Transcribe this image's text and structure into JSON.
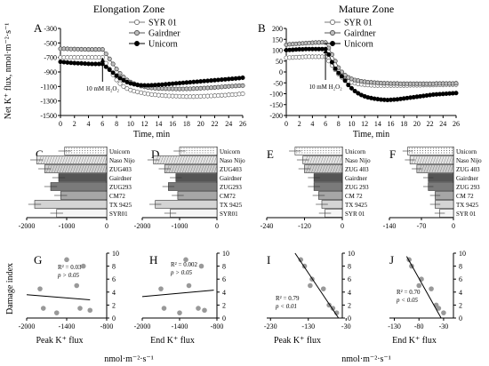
{
  "titles": {
    "left": "Elongation Zone",
    "right": "Mature Zone"
  },
  "labels": {
    "net_flux_ylabel": "Net K⁺ flux, nmol·m⁻²·s⁻¹",
    "time_xlabel": "Time, min",
    "treatment": "10 mM H₂O₂",
    "damage_ylabel": "Damage index",
    "flux_units": "nmol·m⁻²·s⁻¹",
    "peak_xlabel": "Peak K⁺ flux",
    "end_xlabel": "End K⁺ flux"
  },
  "legend": [
    "SYR 01",
    "Gairdner",
    "Unicorn"
  ],
  "varieties": [
    "Unicorn",
    "Naso Nijo",
    "ZUG403",
    "Gairdner",
    "ZUG293",
    "CM72",
    "TX 9425",
    "SYR01"
  ],
  "varieties_mature": [
    "Unicorn",
    "Naso Nijo",
    "ZUG 403",
    "Gairdner",
    "ZUG 293",
    "CM 72",
    "TX 9425",
    "SYR 01"
  ],
  "chart_data": [
    {
      "panel": "A",
      "type": "line",
      "xlabel": "Time, min",
      "ylabel": "Net K⁺ flux, nmol·m⁻²·s⁻¹",
      "xlim": [
        0,
        26
      ],
      "ylim": [
        -1500,
        -300
      ],
      "xticks": [
        0,
        2,
        4,
        6,
        8,
        10,
        12,
        14,
        16,
        18,
        20,
        22,
        24,
        26
      ],
      "yticks": [
        -300,
        -500,
        -700,
        -900,
        -1100,
        -1300,
        -1500
      ],
      "series": [
        {
          "name": "SYR 01",
          "x": [
            0,
            0.5,
            1,
            1.5,
            2,
            2.5,
            3,
            3.5,
            4,
            4.5,
            5,
            5.5,
            6,
            6.5,
            7,
            7.5,
            8,
            8.5,
            9,
            9.5,
            10,
            10.5,
            11,
            11.5,
            12,
            12.5,
            13,
            13.5,
            14,
            14.5,
            15,
            15.5,
            16,
            16.5,
            17,
            17.5,
            18,
            18.5,
            19,
            19.5,
            20,
            20.5,
            21,
            21.5,
            22,
            22.5,
            23,
            23.5,
            24,
            24.5,
            25,
            25.5,
            26
          ],
          "y": [
            -700,
            -700,
            -700,
            -700,
            -700,
            -700,
            -700,
            -700,
            -700,
            -700,
            -700,
            -700,
            -700,
            -780,
            -860,
            -940,
            -1010,
            -1060,
            -1100,
            -1130,
            -1150,
            -1165,
            -1175,
            -1185,
            -1195,
            -1205,
            -1210,
            -1215,
            -1220,
            -1225,
            -1228,
            -1230,
            -1232,
            -1234,
            -1236,
            -1238,
            -1240,
            -1240,
            -1240,
            -1238,
            -1236,
            -1234,
            -1232,
            -1230,
            -1228,
            -1225,
            -1222,
            -1220,
            -1215,
            -1212,
            -1210,
            -1205,
            -1200
          ]
        },
        {
          "name": "Gairdner",
          "x": [
            0,
            0.5,
            1,
            1.5,
            2,
            2.5,
            3,
            3.5,
            4,
            4.5,
            5,
            5.5,
            6,
            6.5,
            7,
            7.5,
            8,
            8.5,
            9,
            9.5,
            10,
            10.5,
            11,
            11.5,
            12,
            12.5,
            13,
            13.5,
            14,
            14.5,
            15,
            15.5,
            16,
            16.5,
            17,
            17.5,
            18,
            18.5,
            19,
            19.5,
            20,
            20.5,
            21,
            21.5,
            22,
            22.5,
            23,
            23.5,
            24,
            24.5,
            25,
            25.5,
            26
          ],
          "y": [
            -580,
            -580,
            -582,
            -584,
            -585,
            -586,
            -588,
            -589,
            -590,
            -590,
            -590,
            -590,
            -590,
            -650,
            -720,
            -790,
            -860,
            -920,
            -970,
            -1010,
            -1040,
            -1060,
            -1080,
            -1095,
            -1105,
            -1115,
            -1120,
            -1125,
            -1128,
            -1130,
            -1131,
            -1132,
            -1133,
            -1134,
            -1134,
            -1134,
            -1133,
            -1132,
            -1130,
            -1128,
            -1125,
            -1122,
            -1120,
            -1117,
            -1114,
            -1110,
            -1106,
            -1102,
            -1099,
            -1096,
            -1093,
            -1090,
            -1088
          ]
        },
        {
          "name": "Unicorn",
          "x": [
            0,
            0.5,
            1,
            1.5,
            2,
            2.5,
            3,
            3.5,
            4,
            4.5,
            5,
            5.5,
            6,
            6.5,
            7,
            7.5,
            8,
            8.5,
            9,
            9.5,
            10,
            10.5,
            11,
            11.5,
            12,
            12.5,
            13,
            13.5,
            14,
            14.5,
            15,
            15.5,
            16,
            16.5,
            17,
            17.5,
            18,
            18.5,
            19,
            19.5,
            20,
            20.5,
            21,
            21.5,
            22,
            22.5,
            23,
            23.5,
            24,
            24.5,
            25,
            25.5,
            26
          ],
          "y": [
            -760,
            -765,
            -770,
            -775,
            -778,
            -780,
            -782,
            -785,
            -788,
            -790,
            -790,
            -790,
            -790,
            -830,
            -870,
            -910,
            -950,
            -985,
            -1015,
            -1040,
            -1058,
            -1070,
            -1078,
            -1083,
            -1085,
            -1085,
            -1083,
            -1080,
            -1077,
            -1074,
            -1070,
            -1066,
            -1062,
            -1058,
            -1054,
            -1050,
            -1046,
            -1042,
            -1038,
            -1034,
            -1030,
            -1026,
            -1022,
            -1018,
            -1014,
            -1010,
            -1006,
            -1002,
            -998,
            -994,
            -990,
            -986,
            -980
          ]
        }
      ]
    },
    {
      "panel": "B",
      "type": "line",
      "xlabel": "Time, min",
      "xlim": [
        0,
        26
      ],
      "ylim": [
        -200,
        200
      ],
      "xticks": [
        0,
        2,
        4,
        6,
        8,
        10,
        12,
        14,
        16,
        18,
        20,
        22,
        24,
        26
      ],
      "yticks": [
        200,
        150,
        100,
        50,
        0,
        -50,
        -100,
        -150,
        -200
      ],
      "series": [
        {
          "name": "SYR 01",
          "x": [
            0,
            0.5,
            1,
            1.5,
            2,
            2.5,
            3,
            3.5,
            4,
            4.5,
            5,
            5.5,
            6,
            6.5,
            7,
            7.5,
            8,
            8.5,
            9,
            9.5,
            10,
            10.5,
            11,
            11.5,
            12,
            12.5,
            13,
            13.5,
            14,
            14.5,
            15,
            15.5,
            16,
            16.5,
            17,
            17.5,
            18,
            18.5,
            19,
            19.5,
            20,
            20.5,
            21,
            21.5,
            22,
            22.5,
            23,
            23.5,
            24,
            24.5,
            25,
            25.5,
            26
          ],
          "y": [
            65,
            66,
            67,
            68,
            68,
            69,
            70,
            70,
            70,
            70,
            70,
            70,
            70,
            50,
            30,
            10,
            -10,
            -25,
            -35,
            -43,
            -48,
            -52,
            -55,
            -57,
            -59,
            -60,
            -61,
            -62,
            -62,
            -62,
            -62,
            -62,
            -62,
            -62,
            -62,
            -62,
            -62,
            -62,
            -61,
            -61,
            -61,
            -61,
            -60,
            -60,
            -60,
            -60,
            -59,
            -59,
            -59,
            -58,
            -58,
            -58,
            -58
          ]
        },
        {
          "name": "Gairdner",
          "x": [
            0,
            0.5,
            1,
            1.5,
            2,
            2.5,
            3,
            3.5,
            4,
            4.5,
            5,
            5.5,
            6,
            6.5,
            7,
            7.5,
            8,
            8.5,
            9,
            9.5,
            10,
            10.5,
            11,
            11.5,
            12,
            12.5,
            13,
            13.5,
            14,
            14.5,
            15,
            15.5,
            16,
            16.5,
            17,
            17.5,
            18,
            18.5,
            19,
            19.5,
            20,
            20.5,
            21,
            21.5,
            22,
            22.5,
            23,
            23.5,
            24,
            24.5,
            25,
            25.5,
            26
          ],
          "y": [
            125,
            127,
            128,
            129,
            130,
            131,
            132,
            133,
            134,
            135,
            135,
            136,
            135,
            110,
            80,
            50,
            20,
            0,
            -15,
            -25,
            -32,
            -37,
            -40,
            -43,
            -45,
            -47,
            -48,
            -49,
            -50,
            -51,
            -52,
            -52,
            -53,
            -53,
            -53,
            -54,
            -54,
            -54,
            -54,
            -54,
            -54,
            -54,
            -54,
            -54,
            -54,
            -54,
            -53,
            -53,
            -53,
            -53,
            -53,
            -53,
            -52
          ]
        },
        {
          "name": "Unicorn",
          "x": [
            0,
            0.5,
            1,
            1.5,
            2,
            2.5,
            3,
            3.5,
            4,
            4.5,
            5,
            5.5,
            6,
            6.5,
            7,
            7.5,
            8,
            8.5,
            9,
            9.5,
            10,
            10.5,
            11,
            11.5,
            12,
            12.5,
            13,
            13.5,
            14,
            14.5,
            15,
            15.5,
            16,
            16.5,
            17,
            17.5,
            18,
            18.5,
            19,
            19.5,
            20,
            20.5,
            21,
            21.5,
            22,
            22.5,
            23,
            23.5,
            24,
            24.5,
            25,
            25.5,
            26
          ],
          "y": [
            100,
            101,
            102,
            103,
            104,
            104,
            105,
            105,
            105,
            105,
            105,
            105,
            105,
            80,
            45,
            15,
            -5,
            -20,
            -40,
            -60,
            -75,
            -88,
            -98,
            -106,
            -112,
            -117,
            -120,
            -123,
            -125,
            -127,
            -128,
            -129,
            -128,
            -127,
            -126,
            -124,
            -122,
            -120,
            -118,
            -116,
            -114,
            -112,
            -110,
            -108,
            -106,
            -104,
            -103,
            -102,
            -101,
            -100,
            -99,
            -98,
            -97
          ]
        }
      ]
    },
    {
      "panel": "C",
      "type": "bar",
      "orientation": "horizontal",
      "xlim": [
        -2000,
        0
      ],
      "xticks": [
        -2000,
        -1000,
        0
      ],
      "categories": [
        "Unicorn",
        "Naso Nijo",
        "ZUG403",
        "Gairdner",
        "ZUG293",
        "CM72",
        "TX 9425",
        "SYR01"
      ],
      "values": [
        -1050,
        -1750,
        -1550,
        -1200,
        -1400,
        -1150,
        -1800,
        -1250
      ]
    },
    {
      "panel": "D",
      "type": "bar",
      "orientation": "horizontal",
      "xlim": [
        -2000,
        0
      ],
      "xticks": [
        -2000,
        -1000,
        0
      ],
      "categories": [
        "Unicorn",
        "Naso Nijo",
        "ZUG403",
        "Gairdner",
        "ZUG293",
        "CM72",
        "TX 9425",
        "SYR01"
      ],
      "values": [
        -1000,
        -1700,
        -1400,
        -1100,
        -1300,
        -1050,
        -1650,
        -1250
      ]
    },
    {
      "panel": "E",
      "type": "bar",
      "orientation": "horizontal",
      "xlim": [
        -240,
        0
      ],
      "xticks": [
        -240,
        -120,
        0
      ],
      "categories": [
        "Unicorn",
        "Naso Nijo",
        "ZUG 403",
        "Gairdner",
        "ZUG 293",
        "CM 72",
        "TX 9425",
        "SYR 01"
      ],
      "values": [
        -150,
        -125,
        -120,
        -90,
        -90,
        -75,
        -65,
        -55
      ]
    },
    {
      "panel": "F",
      "type": "bar",
      "orientation": "horizontal",
      "xlim": [
        -140,
        0
      ],
      "xticks": [
        -140,
        -70,
        0
      ],
      "categories": [
        "Unicorn",
        "Naso Nijo",
        "ZUG 403",
        "Gairdner",
        "ZUG 293",
        "CM 72",
        "TX 9425",
        "SYR 01"
      ],
      "values": [
        -100,
        -95,
        -80,
        -55,
        -55,
        -40,
        -40,
        -30
      ]
    },
    {
      "panel": "G",
      "type": "scatter",
      "xlabel": "Peak K⁺ flux",
      "xlim": [
        -2000,
        -800
      ],
      "ylim": [
        0,
        10
      ],
      "xticks": [
        -2000,
        -1400,
        -800
      ],
      "yticks": [
        0,
        2,
        4,
        6,
        8,
        10
      ],
      "x": [
        -1800,
        -1750,
        -1550,
        -1400,
        -1250,
        -1200,
        -1150,
        -1050
      ],
      "y": [
        4.5,
        1.5,
        0.8,
        9,
        5,
        1.5,
        8,
        1.2
      ],
      "trend": {
        "x": [
          -2000,
          -1050
        ],
        "y": [
          3.6,
          2.8
        ]
      },
      "annotation": [
        "R² = 0.03",
        "p > 0.05"
      ]
    },
    {
      "panel": "H",
      "type": "scatter",
      "xlabel": "End K⁺ flux",
      "xlim": [
        -2000,
        -800
      ],
      "ylim": [
        0,
        10
      ],
      "xticks": [
        -2000,
        -1400,
        -800
      ],
      "yticks": [
        0,
        2,
        4,
        6,
        8,
        10
      ],
      "x": [
        -1700,
        -1650,
        -1400,
        -1300,
        -1250,
        -1100,
        -1050,
        -1000
      ],
      "y": [
        4.5,
        1.5,
        0.8,
        9,
        5,
        1.5,
        8,
        1.2
      ],
      "trend": {
        "x": [
          -2000,
          -850
        ],
        "y": [
          3.3,
          4.3
        ]
      },
      "annotation": [
        "R² = 0.002",
        "p > 0.05"
      ]
    },
    {
      "panel": "I",
      "type": "scatter",
      "xlabel": "Peak K⁺ flux",
      "xlim": [
        -240,
        -40
      ],
      "ylim": [
        0,
        10
      ],
      "xticks": [
        -230,
        -130,
        -30
      ],
      "yticks": [
        0,
        2,
        4,
        6,
        8,
        10
      ],
      "x": [
        -150,
        -140,
        -125,
        -120,
        -90,
        -75,
        -65,
        -55
      ],
      "y": [
        9,
        8,
        5,
        6,
        4.5,
        2,
        1.5,
        0.8
      ],
      "trend": {
        "x": [
          -165,
          -50
        ],
        "y": [
          10,
          0
        ]
      },
      "annotation": [
        "R² = 0.79",
        "p < 0.01"
      ]
    },
    {
      "panel": "J",
      "type": "scatter",
      "xlabel": "End K⁺ flux",
      "xlim": [
        -140,
        -10
      ],
      "ylim": [
        0,
        10
      ],
      "xticks": [
        -130,
        -80,
        -30
      ],
      "yticks": [
        0,
        2,
        4,
        6,
        8,
        10
      ],
      "x": [
        -100,
        -95,
        -80,
        -75,
        -55,
        -45,
        -40,
        -30
      ],
      "y": [
        9,
        8,
        5,
        6,
        4.5,
        2,
        1.5,
        0.8
      ],
      "trend": {
        "x": [
          -105,
          -35
        ],
        "y": [
          9.5,
          0
        ]
      },
      "annotation": [
        "R² = 0.70",
        "p < 0.05"
      ]
    }
  ]
}
